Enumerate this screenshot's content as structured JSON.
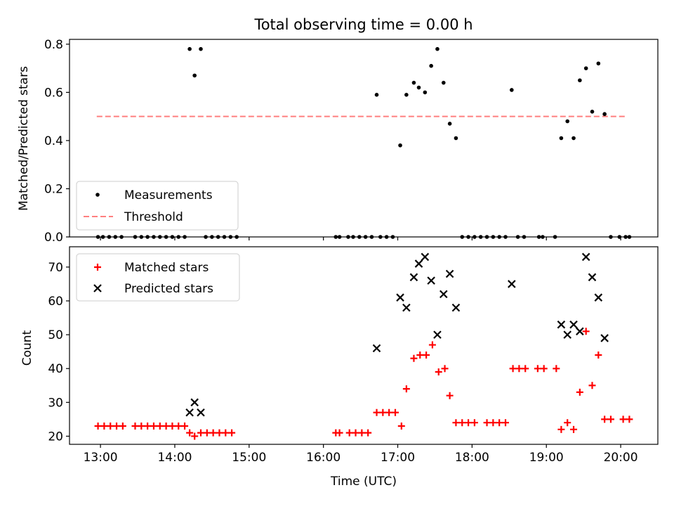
{
  "chart_data": [
    {
      "type": "scatter",
      "title": "Total observing time = 0.00 h",
      "xlabel": "",
      "ylabel": "Matched/Predicted stars",
      "xlim": [
        "12:35",
        "20:30"
      ],
      "ylim": [
        0,
        0.82
      ],
      "yticks": [
        "0.0",
        "0.2",
        "0.4",
        "0.6",
        "0.8"
      ],
      "legend_position": "lower-left",
      "threshold": {
        "name": "Threshold",
        "value": 0.5,
        "x_range": [
          "12:57",
          "20:04"
        ],
        "color": "#ff7f7f",
        "style": "dashed"
      },
      "series": [
        {
          "name": "Measurements",
          "color": "#000000",
          "marker": "dot",
          "points": [
            [
              "12:58",
              0
            ],
            [
              "13:02",
              0
            ],
            [
              "13:07",
              0
            ],
            [
              "13:12",
              0
            ],
            [
              "13:17",
              0
            ],
            [
              "13:28",
              0
            ],
            [
              "13:33",
              0
            ],
            [
              "13:38",
              0
            ],
            [
              "13:43",
              0
            ],
            [
              "13:48",
              0
            ],
            [
              "13:53",
              0
            ],
            [
              "13:58",
              0
            ],
            [
              "14:03",
              0
            ],
            [
              "14:08",
              0
            ],
            [
              "14:12",
              0.78
            ],
            [
              "14:16",
              0.67
            ],
            [
              "14:21",
              0.78
            ],
            [
              "14:25",
              0
            ],
            [
              "14:30",
              0
            ],
            [
              "14:35",
              0
            ],
            [
              "14:40",
              0
            ],
            [
              "14:45",
              0
            ],
            [
              "14:50",
              0
            ],
            [
              "16:10",
              0
            ],
            [
              "16:13",
              0
            ],
            [
              "16:20",
              0
            ],
            [
              "16:24",
              0
            ],
            [
              "16:29",
              0
            ],
            [
              "16:34",
              0
            ],
            [
              "16:39",
              0
            ],
            [
              "16:43",
              0.59
            ],
            [
              "16:46",
              0
            ],
            [
              "16:51",
              0
            ],
            [
              "16:56",
              0
            ],
            [
              "17:02",
              0.38
            ],
            [
              "17:07",
              0.59
            ],
            [
              "17:13",
              0.64
            ],
            [
              "17:17",
              0.62
            ],
            [
              "17:22",
              0.6
            ],
            [
              "17:27",
              0.71
            ],
            [
              "17:32",
              0.78
            ],
            [
              "17:37",
              0.64
            ],
            [
              "17:42",
              0.47
            ],
            [
              "17:47",
              0.41
            ],
            [
              "17:52",
              0
            ],
            [
              "17:57",
              0
            ],
            [
              "18:02",
              0
            ],
            [
              "18:07",
              0
            ],
            [
              "18:12",
              0
            ],
            [
              "18:17",
              0
            ],
            [
              "18:22",
              0
            ],
            [
              "18:27",
              0
            ],
            [
              "18:32",
              0.61
            ],
            [
              "18:37",
              0
            ],
            [
              "18:42",
              0
            ],
            [
              "18:54",
              0
            ],
            [
              "18:57",
              0
            ],
            [
              "19:07",
              0
            ],
            [
              "19:12",
              0.41
            ],
            [
              "19:17",
              0.48
            ],
            [
              "19:22",
              0.41
            ],
            [
              "19:27",
              0.65
            ],
            [
              "19:32",
              0.7
            ],
            [
              "19:37",
              0.52
            ],
            [
              "19:42",
              0.72
            ],
            [
              "19:47",
              0.51
            ],
            [
              "19:52",
              0
            ],
            [
              "19:59",
              0
            ],
            [
              "20:04",
              0
            ],
            [
              "20:07",
              0
            ]
          ]
        }
      ]
    },
    {
      "type": "scatter",
      "title": "",
      "xlabel": "Time (UTC)",
      "ylabel": "Count",
      "xlim": [
        "12:35",
        "20:30"
      ],
      "ylim": [
        17.6,
        76
      ],
      "xticks": [
        "13:00",
        "14:00",
        "15:00",
        "16:00",
        "17:00",
        "18:00",
        "19:00",
        "20:00"
      ],
      "yticks": [
        "20",
        "30",
        "40",
        "50",
        "60",
        "70"
      ],
      "legend_position": "upper-left",
      "series": [
        {
          "name": "Matched stars",
          "color": "#ff0000",
          "marker": "plus",
          "points": [
            [
              "12:58",
              23
            ],
            [
              "13:03",
              23
            ],
            [
              "13:08",
              23
            ],
            [
              "13:13",
              23
            ],
            [
              "13:18",
              23
            ],
            [
              "13:28",
              23
            ],
            [
              "13:33",
              23
            ],
            [
              "13:38",
              23
            ],
            [
              "13:43",
              23
            ],
            [
              "13:48",
              23
            ],
            [
              "13:53",
              23
            ],
            [
              "13:58",
              23
            ],
            [
              "14:03",
              23
            ],
            [
              "14:08",
              23
            ],
            [
              "14:12",
              21
            ],
            [
              "14:16",
              20
            ],
            [
              "14:21",
              21
            ],
            [
              "14:26",
              21
            ],
            [
              "14:31",
              21
            ],
            [
              "14:36",
              21
            ],
            [
              "14:41",
              21
            ],
            [
              "14:46",
              21
            ],
            [
              "16:10",
              21
            ],
            [
              "16:13",
              21
            ],
            [
              "16:21",
              21
            ],
            [
              "16:26",
              21
            ],
            [
              "16:31",
              21
            ],
            [
              "16:36",
              21
            ],
            [
              "16:43",
              27
            ],
            [
              "16:48",
              27
            ],
            [
              "16:53",
              27
            ],
            [
              "16:58",
              27
            ],
            [
              "17:03",
              23
            ],
            [
              "17:07",
              34
            ],
            [
              "17:13",
              43
            ],
            [
              "17:18",
              44
            ],
            [
              "17:23",
              44
            ],
            [
              "17:28",
              47
            ],
            [
              "17:33",
              39
            ],
            [
              "17:38",
              40
            ],
            [
              "17:42",
              32
            ],
            [
              "17:47",
              24
            ],
            [
              "17:52",
              24
            ],
            [
              "17:57",
              24
            ],
            [
              "18:02",
              24
            ],
            [
              "18:12",
              24
            ],
            [
              "18:17",
              24
            ],
            [
              "18:22",
              24
            ],
            [
              "18:27",
              24
            ],
            [
              "18:33",
              40
            ],
            [
              "18:38",
              40
            ],
            [
              "18:43",
              40
            ],
            [
              "18:53",
              40
            ],
            [
              "18:58",
              40
            ],
            [
              "19:08",
              40
            ],
            [
              "19:12",
              22
            ],
            [
              "19:17",
              24
            ],
            [
              "19:22",
              22
            ],
            [
              "19:27",
              33
            ],
            [
              "19:32",
              51
            ],
            [
              "19:37",
              35
            ],
            [
              "19:42",
              44
            ],
            [
              "19:47",
              25
            ],
            [
              "19:52",
              25
            ],
            [
              "20:02",
              25
            ],
            [
              "20:07",
              25
            ]
          ]
        },
        {
          "name": "Predicted stars",
          "color": "#000000",
          "marker": "x",
          "points": [
            [
              "14:12",
              27
            ],
            [
              "14:16",
              30
            ],
            [
              "14:21",
              27
            ],
            [
              "16:43",
              46
            ],
            [
              "17:02",
              61
            ],
            [
              "17:07",
              58
            ],
            [
              "17:13",
              67
            ],
            [
              "17:17",
              71
            ],
            [
              "17:22",
              73
            ],
            [
              "17:27",
              66
            ],
            [
              "17:32",
              50
            ],
            [
              "17:37",
              62
            ],
            [
              "17:42",
              68
            ],
            [
              "17:47",
              58
            ],
            [
              "18:32",
              65
            ],
            [
              "19:12",
              53
            ],
            [
              "19:17",
              50
            ],
            [
              "19:22",
              53
            ],
            [
              "19:27",
              51
            ],
            [
              "19:32",
              73
            ],
            [
              "19:37",
              67
            ],
            [
              "19:42",
              61
            ],
            [
              "19:47",
              49
            ]
          ]
        }
      ]
    }
  ]
}
